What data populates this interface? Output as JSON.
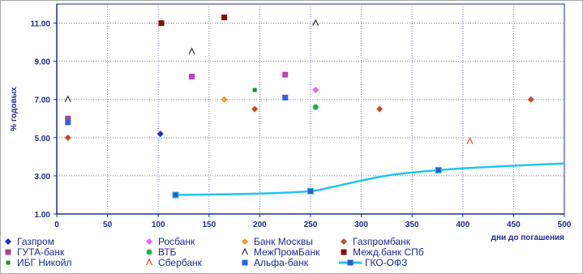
{
  "chart_data": {
    "type": "scatter",
    "xlabel": "дни до погашения",
    "ylabel": "% годовых",
    "xlim": [
      0,
      500
    ],
    "ylim": [
      1.0,
      12.0
    ],
    "x_ticks": [
      "0",
      "50",
      "100",
      "150",
      "200",
      "250",
      "300",
      "350",
      "400",
      "450",
      "500"
    ],
    "y_ticks": [
      "1.00",
      "3.00",
      "5.00",
      "7.00",
      "9.00",
      "11.00"
    ],
    "grid": "dotted",
    "legend_position": "bottom",
    "series": [
      {
        "name": "Газпром",
        "marker": "diamond",
        "color": "#1f2cc9",
        "points": [
          [
            102,
            5.2
          ]
        ]
      },
      {
        "name": "ГУТА-банк",
        "marker": "square",
        "color": "#a0468c",
        "points": [
          [
            11,
            6.0
          ]
        ]
      },
      {
        "name": "ИБГ Никойл",
        "marker": "square-small",
        "color": "#1d8a3a",
        "points": [
          [
            195,
            7.5
          ]
        ]
      },
      {
        "name": "Росбанк",
        "marker": "diamond",
        "color": "#f060f0",
        "points": [
          [
            255,
            7.5
          ]
        ]
      },
      {
        "name": "ВТБ",
        "marker": "circle",
        "color": "#22b14c",
        "points": [
          [
            255,
            6.6
          ]
        ]
      },
      {
        "name": "Сбербанк",
        "marker": "caret",
        "color": "#ee4422",
        "points": [
          [
            407,
            4.8
          ]
        ]
      },
      {
        "name": "Банк Москвы",
        "marker": "diamond",
        "color": "#f09a30",
        "points": [
          [
            165,
            7.0
          ]
        ]
      },
      {
        "name": "МежПромБанк",
        "marker": "caret",
        "color": "#303030",
        "points": [
          [
            11,
            7.0
          ],
          [
            133,
            9.5
          ],
          [
            255,
            11.0
          ]
        ]
      },
      {
        "name": "Альфа-банк",
        "marker": "square",
        "color": "#3060ee",
        "points": [
          [
            11,
            5.8
          ],
          [
            225,
            7.1
          ]
        ]
      },
      {
        "name": "Газпромбанк",
        "marker": "diamond",
        "color": "#c05020",
        "points": [
          [
            11,
            5.0
          ],
          [
            195,
            6.5
          ],
          [
            318,
            6.5
          ],
          [
            467,
            7.0
          ]
        ]
      },
      {
        "name": "Межд.банк СПб",
        "marker": "square",
        "color": "#8b0c0c",
        "points": [
          [
            103,
            11.0
          ],
          [
            165,
            11.3
          ]
        ]
      }
    ],
    "extra_points": [
      {
        "marker": "square",
        "color": "#c040c0",
        "points": [
          [
            133,
            8.2
          ],
          [
            225,
            8.3
          ]
        ]
      }
    ],
    "curve": {
      "name": "ГКО-ОФЗ",
      "color": "#22c4ec",
      "x": [
        117,
        150,
        200,
        250,
        270,
        300,
        330,
        376,
        420,
        470,
        500
      ],
      "y": [
        2.0,
        2.02,
        2.07,
        2.2,
        2.4,
        2.75,
        3.05,
        3.3,
        3.45,
        3.58,
        3.65
      ],
      "marked_x": [
        117,
        250,
        376
      ]
    }
  }
}
